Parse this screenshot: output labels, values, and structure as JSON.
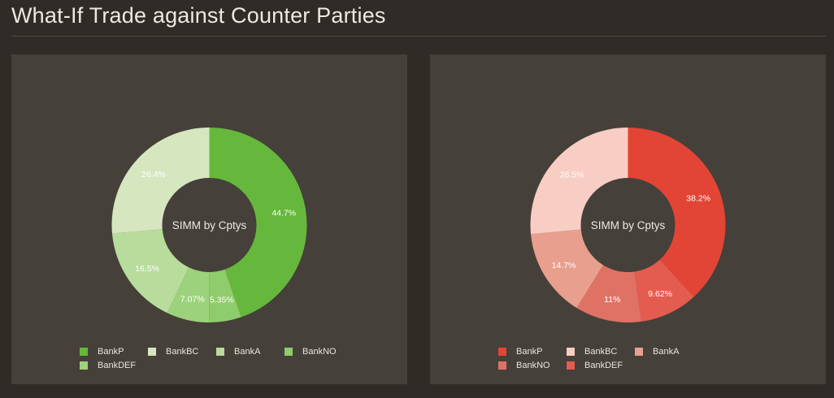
{
  "page": {
    "title": "What-If Trade against Counter Parties"
  },
  "chart_data": [
    {
      "type": "pie",
      "variant": "donut",
      "center_label": "SIMM by Cptys",
      "legend_position": "bottom",
      "slices": [
        {
          "name": "BankP",
          "value": 44.7,
          "label": "44.7%",
          "color": "#66b83c"
        },
        {
          "name": "BankNO",
          "value": 5.35,
          "label": "5.35%",
          "color": "#8fcc6b"
        },
        {
          "name": "BankDEF",
          "value": 7.07,
          "label": "7.07%",
          "color": "#9dd27c"
        },
        {
          "name": "BankA",
          "value": 16.5,
          "label": "16.5%",
          "color": "#b8dc9c"
        },
        {
          "name": "BankBC",
          "value": 26.4,
          "label": "26.4%",
          "color": "#d6e7c0"
        }
      ],
      "legend": [
        {
          "name": "BankP",
          "color": "#66b83c"
        },
        {
          "name": "BankBC",
          "color": "#d6e7c0"
        },
        {
          "name": "BankA",
          "color": "#b8dc9c"
        },
        {
          "name": "BankNO",
          "color": "#8fcc6b"
        },
        {
          "name": "BankDEF",
          "color": "#9dd27c"
        }
      ]
    },
    {
      "type": "pie",
      "variant": "donut",
      "center_label": "SIMM by Cptys",
      "legend_position": "bottom",
      "slices": [
        {
          "name": "BankP",
          "value": 38.2,
          "label": "38.2%",
          "color": "#e24535"
        },
        {
          "name": "BankDEF",
          "value": 9.62,
          "label": "9.62%",
          "color": "#e45c50"
        },
        {
          "name": "BankNO",
          "value": 11,
          "label": "11%",
          "color": "#e07265"
        },
        {
          "name": "BankA",
          "value": 14.7,
          "label": "14.7%",
          "color": "#e89f8e"
        },
        {
          "name": "BankBC",
          "value": 26.5,
          "label": "26.5%",
          "color": "#f8cdc3"
        }
      ],
      "legend": [
        {
          "name": "BankP",
          "color": "#e24535"
        },
        {
          "name": "BankBC",
          "color": "#f8cdc3"
        },
        {
          "name": "BankA",
          "color": "#e89f8e"
        },
        {
          "name": "BankNO",
          "color": "#e07265"
        },
        {
          "name": "BankDEF",
          "color": "#e45c50"
        }
      ]
    }
  ]
}
